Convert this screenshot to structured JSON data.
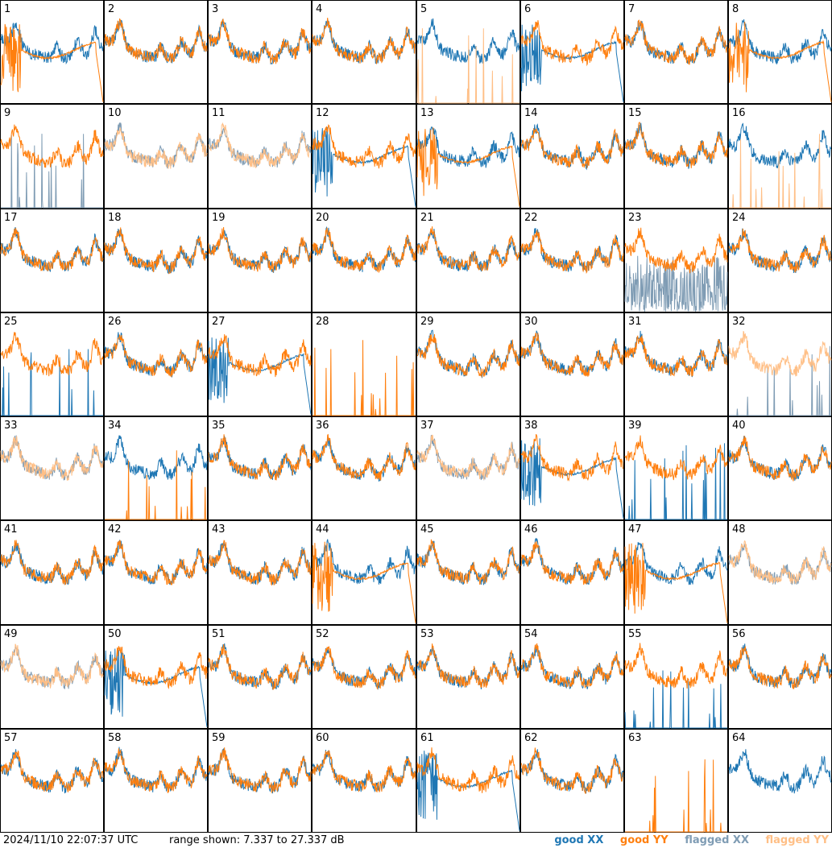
{
  "chart_data": {
    "type": "line",
    "title": "",
    "timestamp": "2024/11/10 22:07:37 UTC",
    "range_label": "range shown: 7.337 to 27.337 dB",
    "ylim": [
      7.337,
      27.337
    ],
    "grid": false,
    "legend_position": "bottom-right",
    "legend": [
      {
        "label": "good XX",
        "color": "#1f77b4"
      },
      {
        "label": "good YY",
        "color": "#ff7f0e"
      },
      {
        "label": "flagged XX",
        "color": "#7f9cb4"
      },
      {
        "label": "flagged YY",
        "color": "#ffbf86"
      }
    ],
    "colors": {
      "good_xx": "#1f77b4",
      "good_yy": "#ff7f0e",
      "flagged_xx": "#7f9cb4",
      "flagged_yy": "#ffbf86"
    },
    "panels": [
      {
        "id": "1",
        "xx": "good",
        "yy": "good",
        "xx_shape": "normal",
        "yy_shape": "dropout"
      },
      {
        "id": "2",
        "xx": "good",
        "yy": "good",
        "xx_shape": "normal",
        "yy_shape": "normal"
      },
      {
        "id": "3",
        "xx": "good",
        "yy": "good",
        "xx_shape": "normal",
        "yy_shape": "normal"
      },
      {
        "id": "4",
        "xx": "good",
        "yy": "good",
        "xx_shape": "normal",
        "yy_shape": "normal"
      },
      {
        "id": "5",
        "xx": "good",
        "yy": "flagged",
        "xx_shape": "normal",
        "yy_shape": "spikes"
      },
      {
        "id": "6",
        "xx": "good",
        "yy": "good",
        "xx_shape": "dropout",
        "yy_shape": "normal"
      },
      {
        "id": "7",
        "xx": "good",
        "yy": "good",
        "xx_shape": "normal",
        "yy_shape": "normal"
      },
      {
        "id": "8",
        "xx": "good",
        "yy": "good",
        "xx_shape": "normal",
        "yy_shape": "dropout"
      },
      {
        "id": "9",
        "xx": "flagged",
        "yy": "good",
        "xx_shape": "spikes",
        "yy_shape": "normal"
      },
      {
        "id": "10",
        "xx": "flagged",
        "yy": "flagged",
        "xx_shape": "normal",
        "yy_shape": "normal"
      },
      {
        "id": "11",
        "xx": "flagged",
        "yy": "flagged",
        "xx_shape": "normal",
        "yy_shape": "normal"
      },
      {
        "id": "12",
        "xx": "good",
        "yy": "good",
        "xx_shape": "dropout",
        "yy_shape": "normal"
      },
      {
        "id": "13",
        "xx": "good",
        "yy": "good",
        "xx_shape": "normal",
        "yy_shape": "dropout"
      },
      {
        "id": "14",
        "xx": "good",
        "yy": "good",
        "xx_shape": "normal",
        "yy_shape": "normal"
      },
      {
        "id": "15",
        "xx": "good",
        "yy": "good",
        "xx_shape": "normal",
        "yy_shape": "normal"
      },
      {
        "id": "16",
        "xx": "good",
        "yy": "flagged",
        "xx_shape": "normal",
        "yy_shape": "spikes"
      },
      {
        "id": "17",
        "xx": "good",
        "yy": "good",
        "xx_shape": "normal",
        "yy_shape": "normal"
      },
      {
        "id": "18",
        "xx": "good",
        "yy": "good",
        "xx_shape": "normal",
        "yy_shape": "normal"
      },
      {
        "id": "19",
        "xx": "good",
        "yy": "good",
        "xx_shape": "normal",
        "yy_shape": "normal"
      },
      {
        "id": "20",
        "xx": "good",
        "yy": "good",
        "xx_shape": "normal",
        "yy_shape": "normal"
      },
      {
        "id": "21",
        "xx": "good",
        "yy": "good",
        "xx_shape": "normal",
        "yy_shape": "normal"
      },
      {
        "id": "22",
        "xx": "good",
        "yy": "good",
        "xx_shape": "normal",
        "yy_shape": "normal"
      },
      {
        "id": "23",
        "xx": "flagged",
        "yy": "good",
        "xx_shape": "noisy",
        "yy_shape": "normal"
      },
      {
        "id": "24",
        "xx": "good",
        "yy": "good",
        "xx_shape": "normal",
        "yy_shape": "normal"
      },
      {
        "id": "25",
        "xx": "good",
        "yy": "good",
        "xx_shape": "spikes",
        "yy_shape": "normal"
      },
      {
        "id": "26",
        "xx": "good",
        "yy": "good",
        "xx_shape": "normal",
        "yy_shape": "normal"
      },
      {
        "id": "27",
        "xx": "good",
        "yy": "good",
        "xx_shape": "dropout",
        "yy_shape": "normal"
      },
      {
        "id": "28",
        "xx": "none",
        "yy": "good",
        "xx_shape": "none",
        "yy_shape": "spikes"
      },
      {
        "id": "29",
        "xx": "good",
        "yy": "good",
        "xx_shape": "normal",
        "yy_shape": "normal"
      },
      {
        "id": "30",
        "xx": "good",
        "yy": "good",
        "xx_shape": "normal",
        "yy_shape": "normal"
      },
      {
        "id": "31",
        "xx": "good",
        "yy": "good",
        "xx_shape": "normal",
        "yy_shape": "normal"
      },
      {
        "id": "32",
        "xx": "flagged",
        "yy": "flagged",
        "xx_shape": "spikes",
        "yy_shape": "normal"
      },
      {
        "id": "33",
        "xx": "flagged",
        "yy": "flagged",
        "xx_shape": "normal",
        "yy_shape": "normal"
      },
      {
        "id": "34",
        "xx": "good",
        "yy": "good",
        "xx_shape": "normal",
        "yy_shape": "spikes"
      },
      {
        "id": "35",
        "xx": "good",
        "yy": "good",
        "xx_shape": "normal",
        "yy_shape": "normal"
      },
      {
        "id": "36",
        "xx": "good",
        "yy": "good",
        "xx_shape": "normal",
        "yy_shape": "normal"
      },
      {
        "id": "37",
        "xx": "flagged",
        "yy": "flagged",
        "xx_shape": "normal",
        "yy_shape": "normal"
      },
      {
        "id": "38",
        "xx": "good",
        "yy": "good",
        "xx_shape": "dropout",
        "yy_shape": "normal"
      },
      {
        "id": "39",
        "xx": "good",
        "yy": "good",
        "xx_shape": "spikes",
        "yy_shape": "normal"
      },
      {
        "id": "40",
        "xx": "good",
        "yy": "good",
        "xx_shape": "normal",
        "yy_shape": "normal"
      },
      {
        "id": "41",
        "xx": "good",
        "yy": "good",
        "xx_shape": "normal",
        "yy_shape": "normal"
      },
      {
        "id": "42",
        "xx": "good",
        "yy": "good",
        "xx_shape": "normal",
        "yy_shape": "normal"
      },
      {
        "id": "43",
        "xx": "good",
        "yy": "good",
        "xx_shape": "normal",
        "yy_shape": "normal"
      },
      {
        "id": "44",
        "xx": "good",
        "yy": "good",
        "xx_shape": "normal",
        "yy_shape": "dropout"
      },
      {
        "id": "45",
        "xx": "good",
        "yy": "good",
        "xx_shape": "normal",
        "yy_shape": "normal"
      },
      {
        "id": "46",
        "xx": "good",
        "yy": "good",
        "xx_shape": "normal",
        "yy_shape": "normal"
      },
      {
        "id": "47",
        "xx": "good",
        "yy": "good",
        "xx_shape": "normal",
        "yy_shape": "dropout"
      },
      {
        "id": "48",
        "xx": "flagged",
        "yy": "flagged",
        "xx_shape": "normal",
        "yy_shape": "normal"
      },
      {
        "id": "49",
        "xx": "flagged",
        "yy": "flagged",
        "xx_shape": "normal",
        "yy_shape": "normal"
      },
      {
        "id": "50",
        "xx": "good",
        "yy": "good",
        "xx_shape": "dropout",
        "yy_shape": "normal"
      },
      {
        "id": "51",
        "xx": "good",
        "yy": "good",
        "xx_shape": "normal",
        "yy_shape": "normal"
      },
      {
        "id": "52",
        "xx": "good",
        "yy": "good",
        "xx_shape": "normal",
        "yy_shape": "normal"
      },
      {
        "id": "53",
        "xx": "good",
        "yy": "good",
        "xx_shape": "normal",
        "yy_shape": "normal"
      },
      {
        "id": "54",
        "xx": "good",
        "yy": "good",
        "xx_shape": "normal",
        "yy_shape": "normal"
      },
      {
        "id": "55",
        "xx": "good",
        "yy": "good",
        "xx_shape": "spikes",
        "yy_shape": "normal"
      },
      {
        "id": "56",
        "xx": "good",
        "yy": "good",
        "xx_shape": "normal",
        "yy_shape": "normal"
      },
      {
        "id": "57",
        "xx": "good",
        "yy": "good",
        "xx_shape": "normal",
        "yy_shape": "normal"
      },
      {
        "id": "58",
        "xx": "good",
        "yy": "good",
        "xx_shape": "normal",
        "yy_shape": "normal"
      },
      {
        "id": "59",
        "xx": "good",
        "yy": "good",
        "xx_shape": "normal",
        "yy_shape": "normal"
      },
      {
        "id": "60",
        "xx": "good",
        "yy": "good",
        "xx_shape": "normal",
        "yy_shape": "normal"
      },
      {
        "id": "61",
        "xx": "good",
        "yy": "good",
        "xx_shape": "dropout",
        "yy_shape": "normal"
      },
      {
        "id": "62",
        "xx": "good",
        "yy": "good",
        "xx_shape": "normal",
        "yy_shape": "normal"
      },
      {
        "id": "63",
        "xx": "none",
        "yy": "good",
        "xx_shape": "none",
        "yy_shape": "spikes"
      },
      {
        "id": "64",
        "xx": "good",
        "yy": "none",
        "xx_shape": "normal",
        "yy_shape": "none"
      }
    ]
  }
}
